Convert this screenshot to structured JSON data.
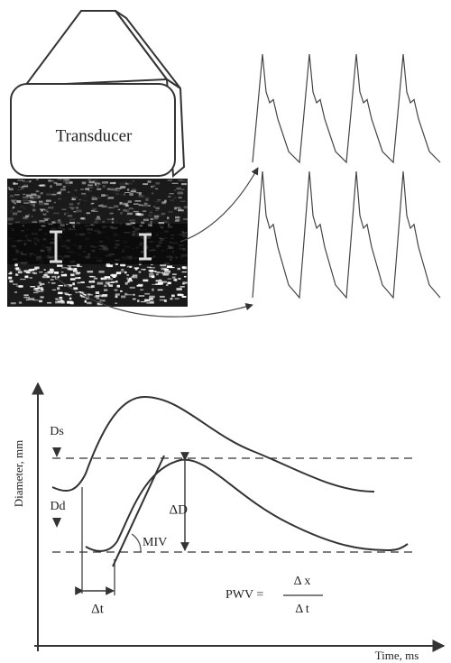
{
  "transducer": {
    "label": "Transducer"
  },
  "graph": {
    "y_axis_label": "Diameter, mm",
    "x_axis_label": "Time, ms",
    "labels": {
      "ds": "Ds",
      "dd": "Dd",
      "delta_d": "ΔD",
      "miv": "MIV",
      "delta_t": "Δt"
    },
    "formula": {
      "lhs": "PWV =",
      "numerator": "Δ x",
      "denominator": "Δ t"
    }
  }
}
